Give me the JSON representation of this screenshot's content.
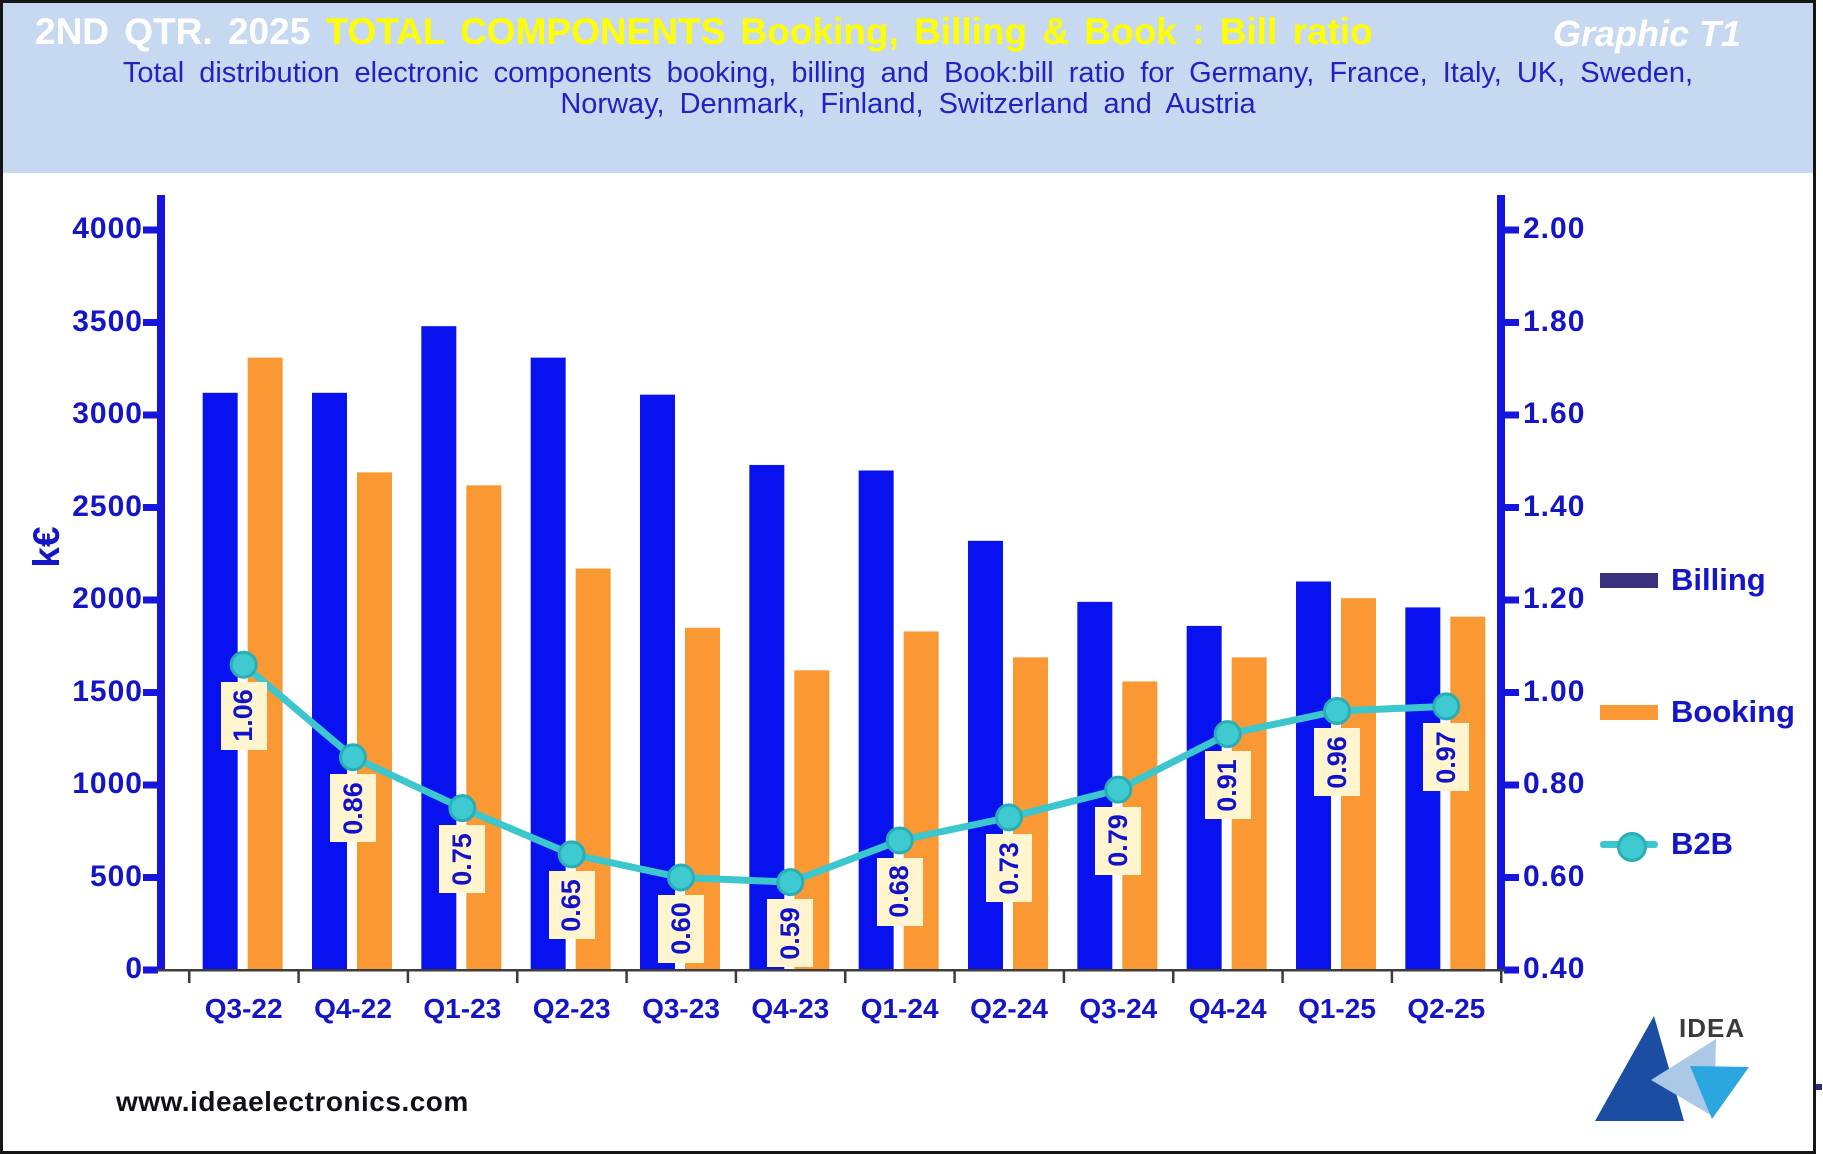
{
  "header": {
    "title_prefix": "2ND QTR. 2025",
    "title_main": "TOTAL COMPONENTS Booking, Billing  & Book : Bill ratio",
    "graphic_label": "Graphic T1",
    "subtitle_line1": "Total distribution electronic components booking, billing and Book:bill ratio for Germany, France, Italy, UK, Sweden,",
    "subtitle_line2": "Norway, Denmark, Finland, Switzerland and Austria"
  },
  "chart_data": {
    "type": "combo-bar-line",
    "categories": [
      "Q3-22",
      "Q4-22",
      "Q1-23",
      "Q2-23",
      "Q3-23",
      "Q4-23",
      "Q1-24",
      "Q2-24",
      "Q3-24",
      "Q4-24",
      "Q1-25",
      "Q2-25"
    ],
    "series": [
      {
        "name": "Billing",
        "type": "bar",
        "axis": "left",
        "color": "#0712ee",
        "values": [
          3120,
          3120,
          3480,
          3310,
          3110,
          2730,
          2700,
          2320,
          1990,
          1860,
          2100,
          1960
        ]
      },
      {
        "name": "Booking",
        "type": "bar",
        "axis": "left",
        "color": "#fa9833",
        "values": [
          3310,
          2690,
          2620,
          2170,
          1850,
          1620,
          1830,
          1690,
          1560,
          1690,
          2010,
          1910
        ]
      },
      {
        "name": "B2B",
        "type": "line",
        "axis": "right",
        "color": "#3cc6ce",
        "values": [
          1.06,
          0.86,
          0.75,
          0.65,
          0.6,
          0.59,
          0.68,
          0.73,
          0.79,
          0.91,
          0.96,
          0.97
        ]
      }
    ],
    "left_axis": {
      "label": "k€",
      "min": 0,
      "max": 4000,
      "step": 500,
      "tick_labels": [
        "4000",
        "3500",
        "3000",
        "2500",
        "2000",
        "1500",
        "1000",
        "500",
        "0"
      ]
    },
    "right_axis": {
      "min": 0.4,
      "max": 2.0,
      "step": 0.2,
      "tick_labels": [
        "2.00",
        "1.80",
        "1.60",
        "1.40",
        "1.20",
        "1.00",
        "0.80",
        "0.60",
        "0.40"
      ]
    },
    "point_labels": [
      "1.06",
      "0.86",
      "0.75",
      "0.65",
      "0.60",
      "0.59",
      "0.68",
      "0.73",
      "0.79",
      "0.91",
      "0.96",
      "0.97"
    ],
    "grid": "off",
    "legend_position": "right"
  },
  "colors": {
    "header_bg": "#c6d9f0",
    "title_prefix": "#ffffff",
    "title_main": "#ffff00",
    "subtitle": "#2222c4",
    "axis_line": "#1515dd",
    "tick_text": "#1515c8",
    "baseline": "#3c3c3c",
    "bar_billing": "#0712ee",
    "bar_booking": "#fa9833",
    "b2b_line": "#3cc6ce",
    "b2b_marker_fill": "#3fc9d1",
    "b2b_marker_stroke": "#29aeb6",
    "label_box_bg": "#fff5ce",
    "label_text": "#1212cc",
    "legend_billing_swatch": "#39307f"
  },
  "legend": {
    "items": [
      {
        "label": "Billing",
        "swatch": "#39307f"
      },
      {
        "label": "Booking",
        "swatch": "#fa9833"
      },
      {
        "label": "B2B",
        "swatch": "#3cc6ce"
      }
    ]
  },
  "footer": {
    "website": "www.ideaelectronics.com"
  },
  "logo": {
    "text": "IDEA"
  }
}
